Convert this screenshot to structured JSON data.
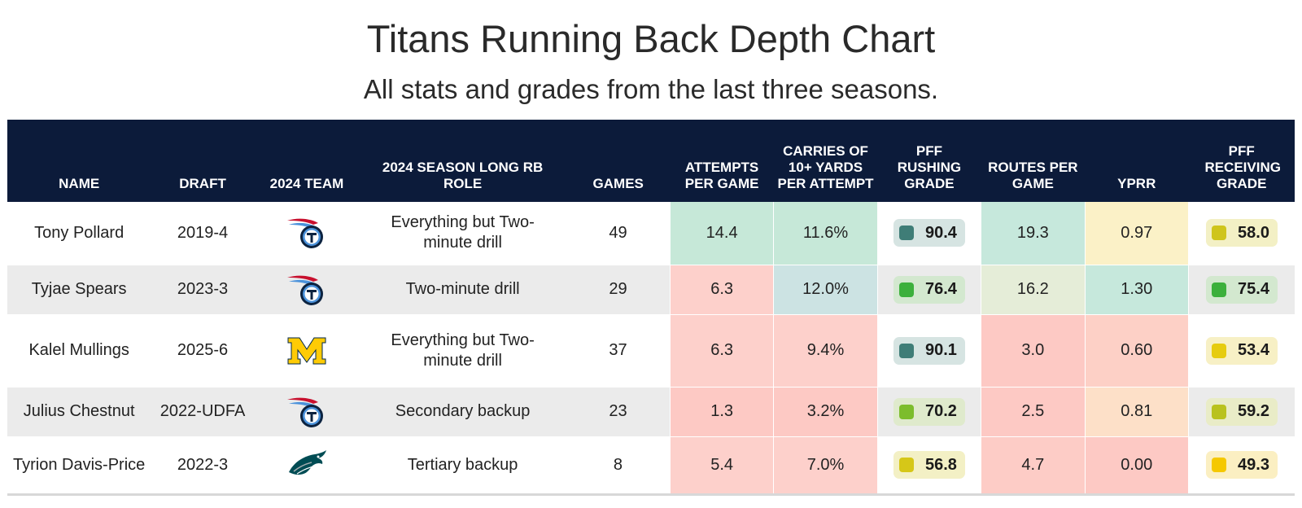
{
  "title": "Titans Running Back Depth Chart",
  "subtitle": "All stats and grades from the last three seasons.",
  "headers": {
    "name": "NAME",
    "draft": "DRAFT",
    "team": "2024 TEAM",
    "role": "2024 SEASON LONG RB ROLE",
    "games": "GAMES",
    "attempts": "ATTEMPTS PER GAME",
    "carries10": "CARRIES OF 10+ YARDS PER ATTEMPT",
    "rushing_grade": "PFF RUSHING GRADE",
    "routes": "ROUTES PER GAME",
    "yprr": "YPRR",
    "receiving_grade": "PFF RECEIVING GRADE"
  },
  "colors": {
    "header_bg": "#0c1b3a",
    "row_alt": "#ebebeb"
  },
  "rows": [
    {
      "name": "Tony Pollard",
      "draft": "2019-4",
      "team_icon": "titans-logo-icon",
      "role": "Everything but Two-minute drill",
      "games": "49",
      "attempts": "14.4",
      "attempts_bg": "#c6e8d8",
      "carries10": "11.6%",
      "carries10_bg": "#c6e8d8",
      "rushing_grade": "90.4",
      "rushing_dot": "#3f7d77",
      "rushing_pill": "#d6e4e2",
      "routes": "19.3",
      "routes_bg": "#c6e8dc",
      "yprr": "0.97",
      "yprr_bg": "#fbf1c7",
      "receiving_grade": "58.0",
      "receiving_dot": "#cfc51c",
      "receiving_pill": "#f3f0c5",
      "height": 77
    },
    {
      "name": "Tyjae Spears",
      "draft": "2023-3",
      "team_icon": "titans-logo-icon",
      "role": "Two-minute drill",
      "games": "29",
      "attempts": "6.3",
      "attempts_bg": "#fdd0cb",
      "carries10": "12.0%",
      "carries10_bg": "#cce3e3",
      "rushing_grade": "76.4",
      "rushing_dot": "#3cb03c",
      "rushing_pill": "#d3e8cf",
      "routes": "16.2",
      "routes_bg": "#e5edd8",
      "yprr": "1.30",
      "yprr_bg": "#c6e8dc",
      "receiving_grade": "75.4",
      "receiving_dot": "#3cb03c",
      "receiving_pill": "#d3e8cf",
      "height": 61
    },
    {
      "name": "Kalel Mullings",
      "draft": "2025-6",
      "team_icon": "michigan-logo-icon",
      "role": "Everything but Two-minute drill",
      "games": "37",
      "attempts": "6.3",
      "attempts_bg": "#fdd0cb",
      "carries10": "9.4%",
      "carries10_bg": "#fdd0cb",
      "rushing_grade": "90.1",
      "rushing_dot": "#3f7d77",
      "rushing_pill": "#d6e4e2",
      "routes": "3.0",
      "routes_bg": "#fdc9c4",
      "yprr": "0.60",
      "yprr_bg": "#fdd0c6",
      "receiving_grade": "53.4",
      "receiving_dot": "#e6cc10",
      "receiving_pill": "#f7f0c5",
      "height": 89
    },
    {
      "name": "Julius Chestnut",
      "draft": "2022-UDFA",
      "team_icon": "titans-logo-icon",
      "role": "Secondary backup",
      "games": "23",
      "attempts": "1.3",
      "attempts_bg": "#fdc9c4",
      "carries10": "3.2%",
      "carries10_bg": "#fdc9c4",
      "rushing_grade": "70.2",
      "rushing_dot": "#7cbd2c",
      "rushing_pill": "#dfeacc",
      "routes": "2.5",
      "routes_bg": "#fdc9c4",
      "yprr": "0.81",
      "yprr_bg": "#fde0c8",
      "receiving_grade": "59.2",
      "receiving_dot": "#b9c21e",
      "receiving_pill": "#e9ecc7",
      "height": 61
    },
    {
      "name": "Tyrion Davis-Price",
      "draft": "2022-3",
      "team_icon": "eagles-logo-icon",
      "role": "Tertiary backup",
      "games": "8",
      "attempts": "5.4",
      "attempts_bg": "#fdd0cb",
      "carries10": "7.0%",
      "carries10_bg": "#fdd0cb",
      "rushing_grade": "56.8",
      "rushing_dot": "#d6c718",
      "rushing_pill": "#f3f0c5",
      "routes": "4.7",
      "routes_bg": "#fdccc6",
      "yprr": "0.00",
      "yprr_bg": "#fdc9c4",
      "receiving_grade": "49.3",
      "receiving_dot": "#f5c800",
      "receiving_pill": "#fbefc2",
      "height": 71
    }
  ],
  "chart_data": {
    "type": "table",
    "title": "Titans Running Back Depth Chart",
    "subtitle": "All stats and grades from the last three seasons.",
    "columns": [
      "NAME",
      "DRAFT",
      "2024 TEAM",
      "2024 SEASON LONG RB ROLE",
      "GAMES",
      "ATTEMPTS PER GAME",
      "CARRIES OF 10+ YARDS PER ATTEMPT",
      "PFF RUSHING GRADE",
      "ROUTES PER GAME",
      "YPRR",
      "PFF RECEIVING GRADE"
    ],
    "rows": [
      [
        "Tony Pollard",
        "2019-4",
        "Titans",
        "Everything but Two-minute drill",
        49,
        14.4,
        "11.6%",
        90.4,
        19.3,
        0.97,
        58.0
      ],
      [
        "Tyjae Spears",
        "2023-3",
        "Titans",
        "Two-minute drill",
        29,
        6.3,
        "12.0%",
        76.4,
        16.2,
        1.3,
        75.4
      ],
      [
        "Kalel Mullings",
        "2025-6",
        "Michigan",
        "Everything but Two-minute drill",
        37,
        6.3,
        "9.4%",
        90.1,
        3.0,
        0.6,
        53.4
      ],
      [
        "Julius Chestnut",
        "2022-UDFA",
        "Titans",
        "Secondary backup",
        23,
        1.3,
        "3.2%",
        70.2,
        2.5,
        0.81,
        59.2
      ],
      [
        "Tyrion Davis-Price",
        "2022-3",
        "Eagles",
        "Tertiary backup",
        8,
        5.4,
        "7.0%",
        56.8,
        4.7,
        0.0,
        49.3
      ]
    ]
  }
}
